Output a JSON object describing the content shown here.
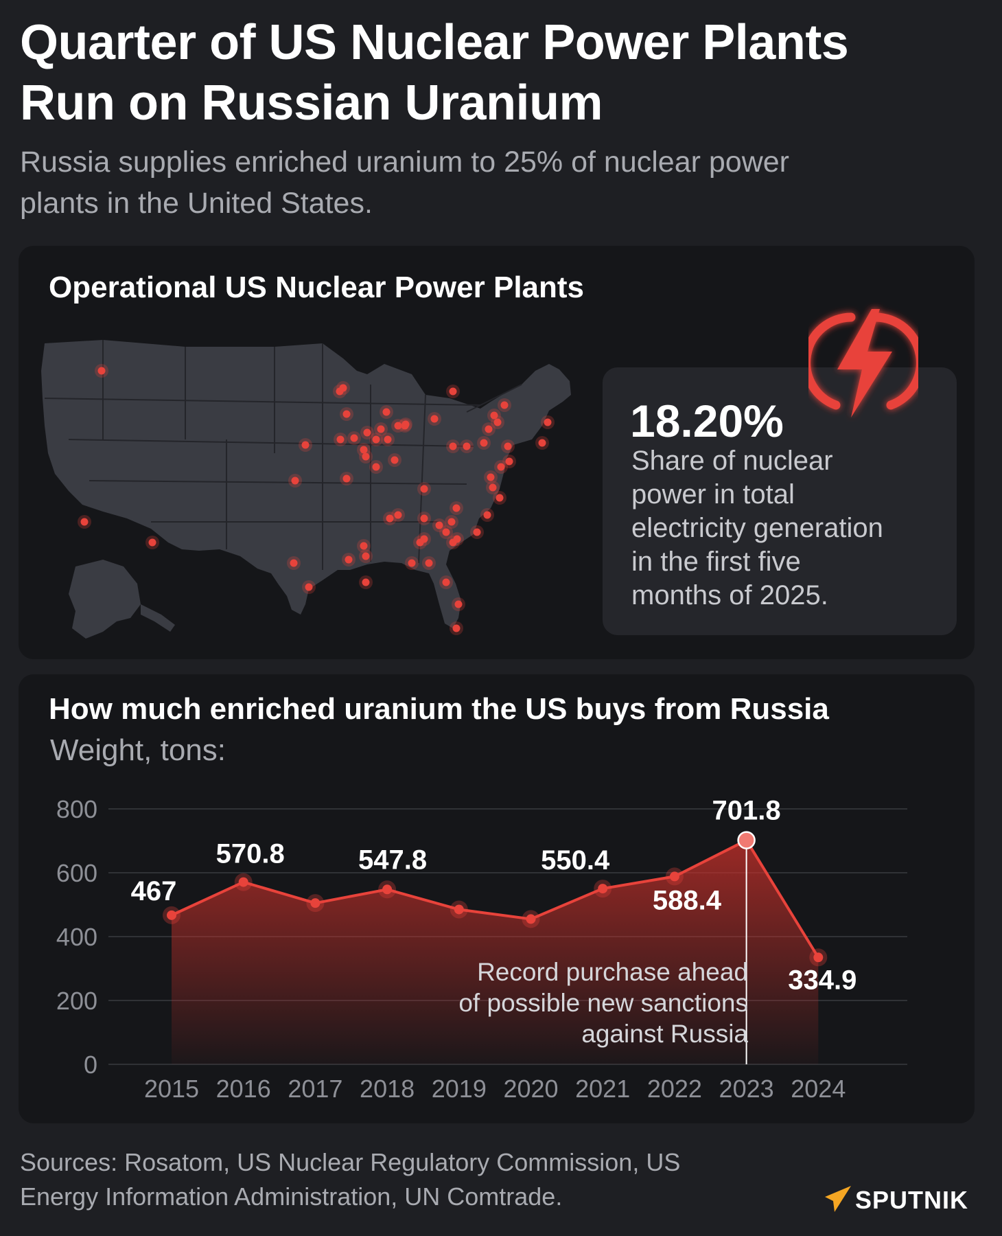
{
  "header": {
    "title_line1": "Quarter of US Nuclear Power Plants",
    "title_line2": "Run on Russian Uranium",
    "subtitle_line1": "Russia supplies enriched uranium to 25% of nuclear power",
    "subtitle_line2": "plants in the United States."
  },
  "map_card": {
    "title": "Operational US Nuclear Power Plants",
    "marker_color": "#e8433b",
    "land_color": "#3a3c43",
    "border_color": "#24252a"
  },
  "stat": {
    "value": "18.20%",
    "line1": "Share of nuclear",
    "line2": "power in total",
    "line3": "electricity generation",
    "line4": "in the first five",
    "line5": "months of 2025.",
    "icon": "lightning-bolt-icon"
  },
  "chart_card": {
    "title": "How much enriched uranium the US buys from Russia",
    "unit": "Weight, tons:",
    "annotation_line1": "Record purchase ahead",
    "annotation_line2": "of possible new sanctions",
    "annotation_line3": "against Russia"
  },
  "chart_data": {
    "type": "area",
    "title": "How much enriched uranium the US buys from Russia",
    "ylabel": "Weight, tons:",
    "x": [
      "2015",
      "2016",
      "2017",
      "2018",
      "2019",
      "2020",
      "2021",
      "2022",
      "2023",
      "2024"
    ],
    "values": [
      467,
      570.8,
      505,
      547.8,
      485,
      455,
      550.4,
      588.4,
      701.8,
      334.9
    ],
    "data_labels": {
      "2015": "467",
      "2016": "570.8",
      "2018": "547.8",
      "2021": "550.4",
      "2022": "588.4",
      "2023": "701.8",
      "2024": "334.9"
    },
    "ylim": [
      0,
      800
    ],
    "yticks": [
      0,
      200,
      400,
      600,
      800
    ],
    "grid": true,
    "highlight": "2023",
    "color": "#e8433b"
  },
  "footer": {
    "sources_line1": "Sources: Rosatom, US Nuclear Regulatory Commission, US",
    "sources_line2": "Energy Information Administration, UN Comtrade.",
    "logo_text": "SPUTNIK",
    "logo_color": "#f5a623"
  }
}
